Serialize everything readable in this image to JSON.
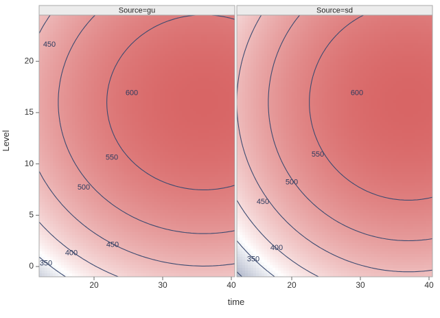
{
  "chart_data": {
    "type": "contour",
    "xlabel": "time",
    "ylabel": "Level",
    "xlim": [
      12,
      40.5
    ],
    "ylim": [
      -1,
      24.5
    ],
    "x_ticks": [
      20,
      30,
      40
    ],
    "y_ticks": [
      0,
      5,
      10,
      15,
      20
    ],
    "colors": {
      "low": "#7c88a8",
      "mid": "#ffffff",
      "high": "#d86565",
      "contour_line": "#3b4a70"
    },
    "panels": [
      {
        "label": "Source=gu",
        "surface": {
          "x_peak": 36,
          "y_peak": 16,
          "max": 640,
          "a": 0.2,
          "b": 0.55
        },
        "contour_levels": [
          350,
          400,
          450,
          500,
          550,
          600
        ],
        "contour_labels": [
          {
            "text": "450",
            "x": 13.5,
            "y": 21.6
          },
          {
            "text": "600",
            "x": 25.5,
            "y": 16.9
          },
          {
            "text": "550",
            "x": 22.6,
            "y": 10.6
          },
          {
            "text": "500",
            "x": 18.5,
            "y": 7.7
          },
          {
            "text": "450",
            "x": 22.7,
            "y": 2.1
          },
          {
            "text": "400",
            "x": 16.7,
            "y": 1.3
          },
          {
            "text": "350",
            "x": 13.0,
            "y": 0.3
          }
        ]
      },
      {
        "label": "Source=sd",
        "surface": {
          "x_peak": 37,
          "y_peak": 16,
          "max": 650,
          "a": 0.24,
          "b": 0.55
        },
        "contour_levels": [
          350,
          400,
          450,
          500,
          550,
          600
        ],
        "contour_labels": [
          {
            "text": "600",
            "x": 29.5,
            "y": 16.9
          },
          {
            "text": "550",
            "x": 23.8,
            "y": 10.9
          },
          {
            "text": "500",
            "x": 20.0,
            "y": 8.2
          },
          {
            "text": "450",
            "x": 15.8,
            "y": 6.3
          },
          {
            "text": "400",
            "x": 17.8,
            "y": 1.8
          },
          {
            "text": "350",
            "x": 14.4,
            "y": 0.7
          }
        ]
      }
    ]
  }
}
